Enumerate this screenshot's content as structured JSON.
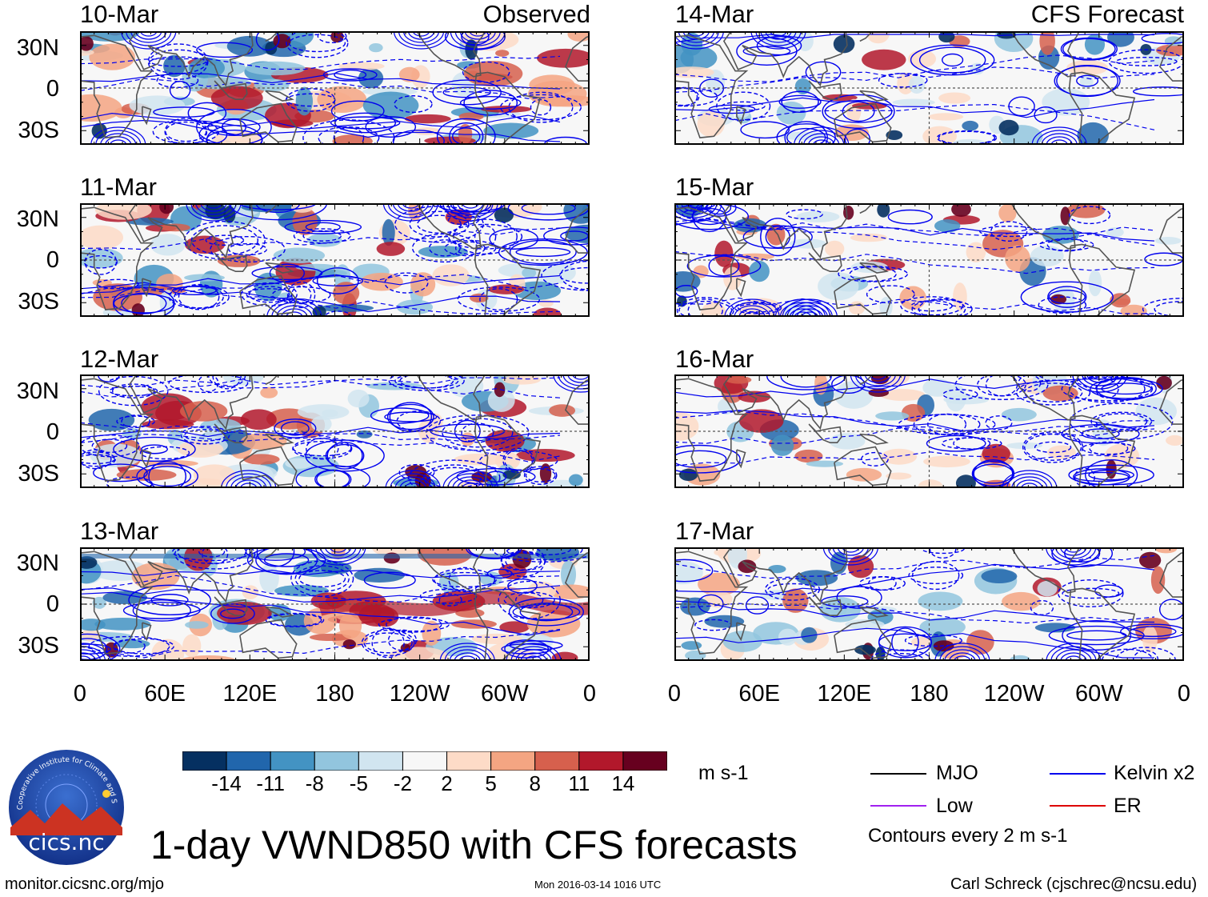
{
  "title": "1-day VWND850 with CFS forecasts",
  "left_column_label": "Observed",
  "right_column_label": "CFS Forecast",
  "panels": [
    {
      "date": "10-Mar",
      "mode": "observed",
      "seed": 11
    },
    {
      "date": "11-Mar",
      "mode": "observed",
      "seed": 23
    },
    {
      "date": "12-Mar",
      "mode": "observed",
      "seed": 37
    },
    {
      "date": "13-Mar",
      "mode": "observed",
      "seed": 41
    },
    {
      "date": "14-Mar",
      "mode": "forecast",
      "seed": 53
    },
    {
      "date": "15-Mar",
      "mode": "forecast",
      "seed": 67
    },
    {
      "date": "16-Mar",
      "mode": "forecast",
      "seed": 71
    },
    {
      "date": "17-Mar",
      "mode": "forecast",
      "seed": 83
    }
  ],
  "chart_data": {
    "type": "heatmap",
    "variable": "850 hPa meridional wind anomaly",
    "y_ticks": [
      "30N",
      "0",
      "30S"
    ],
    "y_range_deg": [
      -40,
      40
    ],
    "x_ticks": [
      "0",
      "60E",
      "120E",
      "180",
      "120W",
      "60W",
      "0"
    ],
    "x_range_deg": [
      0,
      360
    ],
    "units": "m s-1",
    "colorbar": {
      "tick_labels": [
        "-14",
        "-11",
        "-8",
        "-5",
        "-2",
        "2",
        "5",
        "8",
        "11",
        "14"
      ],
      "colors": [
        "#053061",
        "#2166ac",
        "#4393c3",
        "#92c5de",
        "#d1e5f0",
        "#f7f7f7",
        "#fddbc7",
        "#f4a582",
        "#d6604d",
        "#b2182b",
        "#67001f"
      ]
    },
    "contour_legend": [
      {
        "label": "MJO",
        "color": "#000000"
      },
      {
        "label": "Kelvin x2",
        "color": "#0000ee"
      },
      {
        "label": "Low",
        "color": "#a020f0"
      },
      {
        "label": "ER",
        "color": "#dd0000"
      }
    ],
    "contour_note": "Contours every 2 m s-1"
  },
  "footer": {
    "url": "monitor.cicsnc.org/mjo",
    "timestamp": "Mon 2016-03-14 1016 UTC",
    "author": "Carl Schreck (cjschrec@ncsu.edu)"
  },
  "logo": {
    "text": "cics.nc",
    "ring_text": "Cooperative Institute for Climate and Satellites"
  }
}
